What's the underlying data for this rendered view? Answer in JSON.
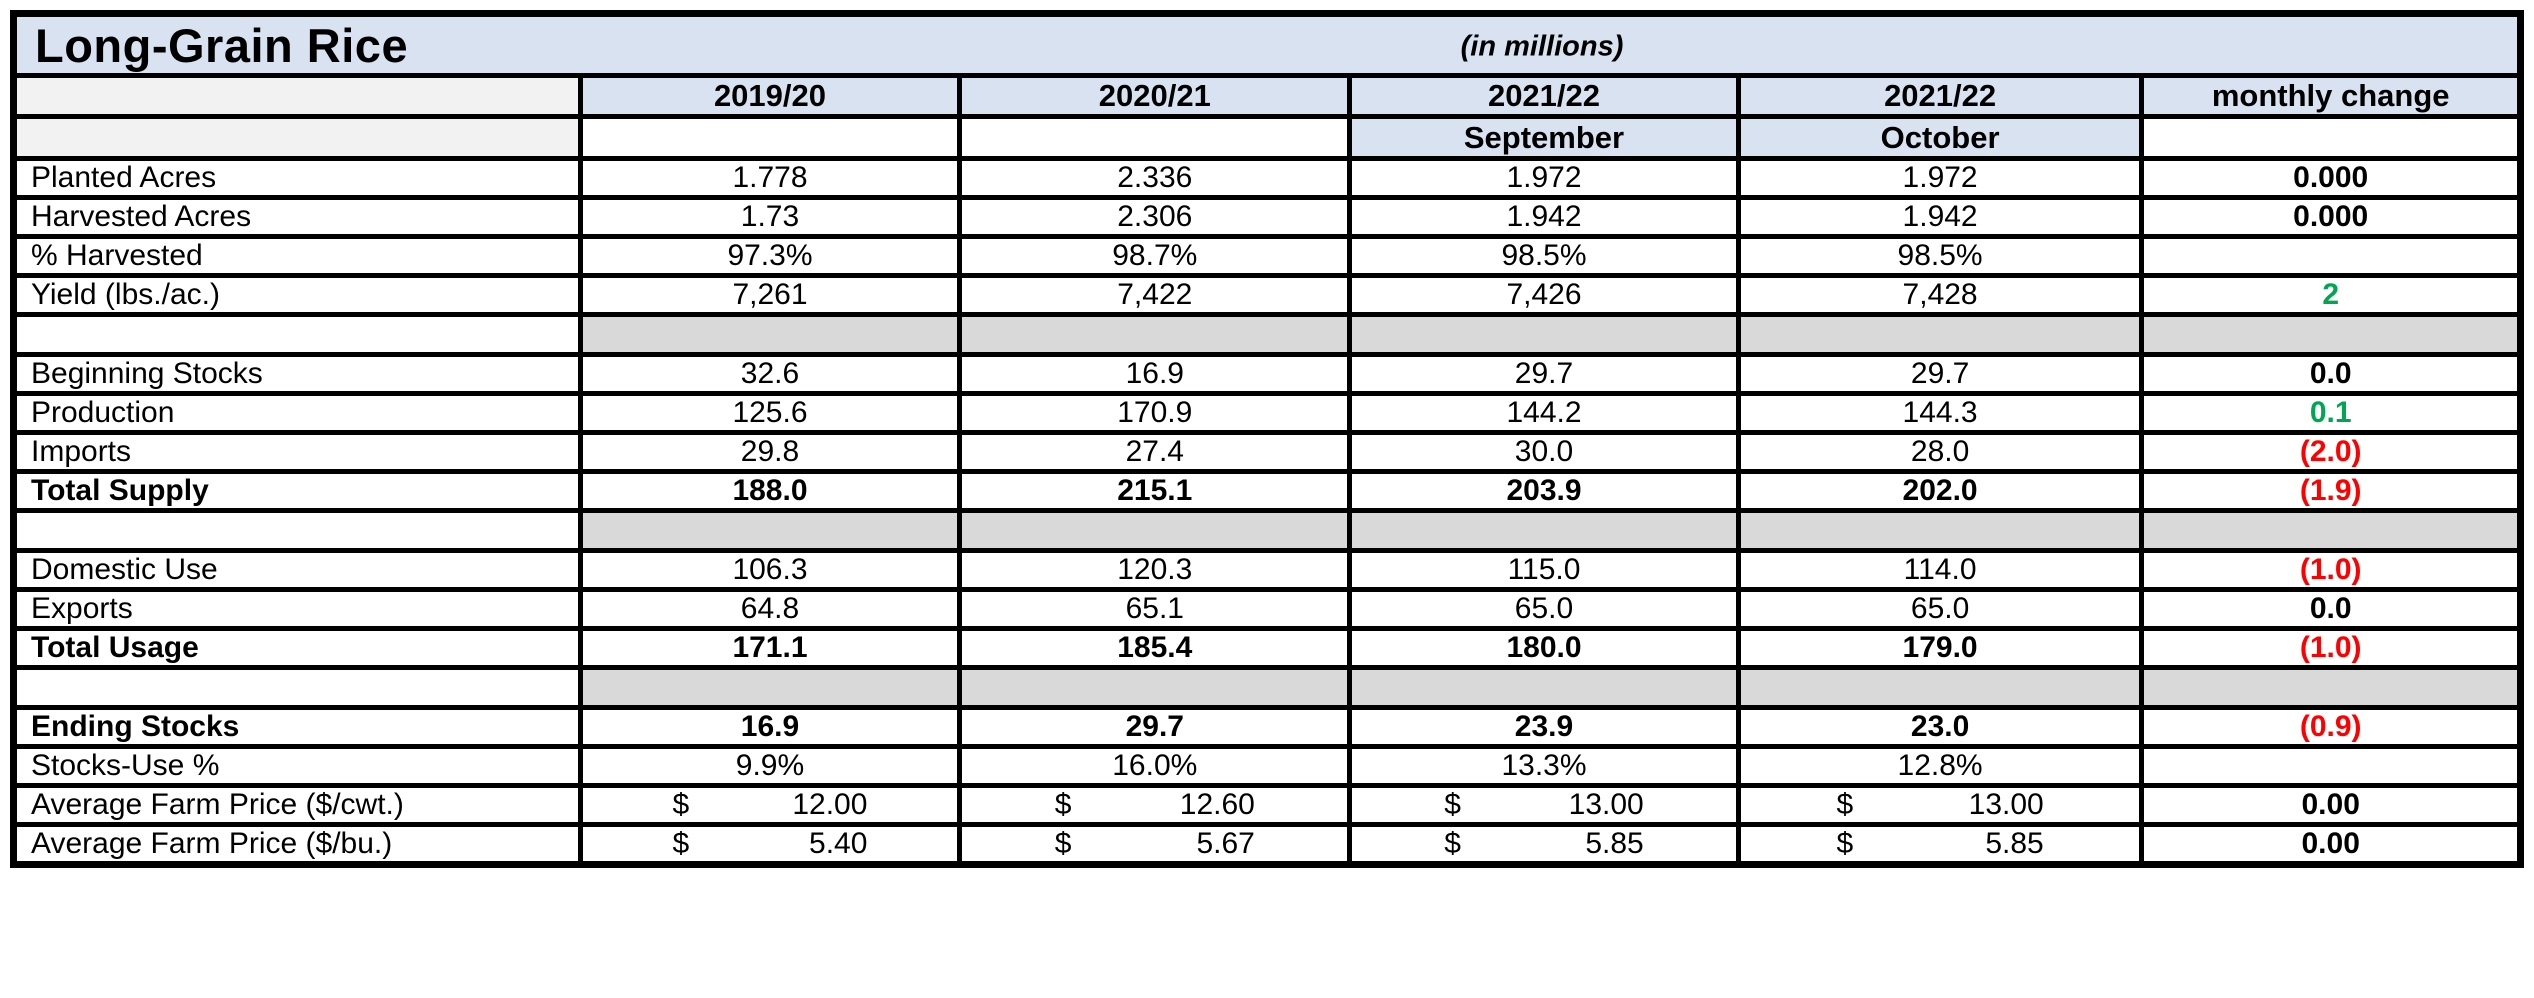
{
  "title": "Long-Grain Rice",
  "units_note": "(in millions)",
  "header": {
    "columns": [
      "",
      "2019/20",
      "2020/21",
      "2021/22",
      "2021/22",
      "monthly change"
    ],
    "subcolumns": [
      "",
      "",
      "",
      "September",
      "October",
      ""
    ]
  },
  "rows": [
    {
      "type": "data",
      "label": "Planted Acres",
      "bold": false,
      "currency": false,
      "values": [
        "1.778",
        "2.336",
        "1.972",
        "1.972"
      ],
      "change": "0.000",
      "change_color": "black"
    },
    {
      "type": "data",
      "label": "Harvested Acres",
      "bold": false,
      "currency": false,
      "values": [
        "1.73",
        "2.306",
        "1.942",
        "1.942"
      ],
      "change": "0.000",
      "change_color": "black"
    },
    {
      "type": "data",
      "label": "% Harvested",
      "bold": false,
      "currency": false,
      "values": [
        "97.3%",
        "98.7%",
        "98.5%",
        "98.5%"
      ],
      "change": "",
      "change_color": "black"
    },
    {
      "type": "data",
      "label": "Yield (lbs./ac.)",
      "bold": false,
      "currency": false,
      "values": [
        "7,261",
        "7,422",
        "7,426",
        "7,428"
      ],
      "change": "2",
      "change_color": "green"
    },
    {
      "type": "spacer"
    },
    {
      "type": "data",
      "label": "Beginning Stocks",
      "bold": false,
      "currency": false,
      "values": [
        "32.6",
        "16.9",
        "29.7",
        "29.7"
      ],
      "change": "0.0",
      "change_color": "black"
    },
    {
      "type": "data",
      "label": "Production",
      "bold": false,
      "currency": false,
      "values": [
        "125.6",
        "170.9",
        "144.2",
        "144.3"
      ],
      "change": "0.1",
      "change_color": "green"
    },
    {
      "type": "data",
      "label": "Imports",
      "bold": false,
      "currency": false,
      "values": [
        "29.8",
        "27.4",
        "30.0",
        "28.0"
      ],
      "change": "(2.0)",
      "change_color": "red"
    },
    {
      "type": "data",
      "label": "Total Supply",
      "bold": true,
      "currency": false,
      "values": [
        "188.0",
        "215.1",
        "203.9",
        "202.0"
      ],
      "change": "(1.9)",
      "change_color": "red"
    },
    {
      "type": "spacer"
    },
    {
      "type": "data",
      "label": "Domestic Use",
      "bold": false,
      "currency": false,
      "values": [
        "106.3",
        "120.3",
        "115.0",
        "114.0"
      ],
      "change": "(1.0)",
      "change_color": "red"
    },
    {
      "type": "data",
      "label": "Exports",
      "bold": false,
      "currency": false,
      "values": [
        "64.8",
        "65.1",
        "65.0",
        "65.0"
      ],
      "change": "0.0",
      "change_color": "black"
    },
    {
      "type": "data",
      "label": "Total Usage",
      "bold": true,
      "currency": false,
      "values": [
        "171.1",
        "185.4",
        "180.0",
        "179.0"
      ],
      "change": "(1.0)",
      "change_color": "red"
    },
    {
      "type": "spacer"
    },
    {
      "type": "data",
      "label": "Ending Stocks",
      "bold": true,
      "currency": false,
      "values": [
        "16.9",
        "29.7",
        "23.9",
        "23.0"
      ],
      "change": "(0.9)",
      "change_color": "red"
    },
    {
      "type": "data",
      "label": "Stocks-Use %",
      "bold": false,
      "currency": false,
      "values": [
        "9.9%",
        "16.0%",
        "13.3%",
        "12.8%"
      ],
      "change": "",
      "change_color": "black"
    },
    {
      "type": "data",
      "label": "Average Farm Price ($/cwt.)",
      "bold": false,
      "currency": true,
      "currency_symbol": "$",
      "values": [
        "12.00",
        "12.60",
        "13.00",
        "13.00"
      ],
      "change": "0.00",
      "change_color": "black"
    },
    {
      "type": "data",
      "label": "Average Farm Price ($/bu.)",
      "bold": false,
      "currency": true,
      "currency_symbol": "$",
      "values": [
        "5.40",
        "5.67",
        "5.85",
        "5.85"
      ],
      "change": "0.00",
      "change_color": "black"
    }
  ],
  "colors": {
    "header_blue": "#d8e2f0",
    "label_gray": "#f2f2f2",
    "spacer_gray": "#d9d9d9",
    "positive_green": "#00a651",
    "negative_red": "#ff0000",
    "border_black": "#000000"
  }
}
